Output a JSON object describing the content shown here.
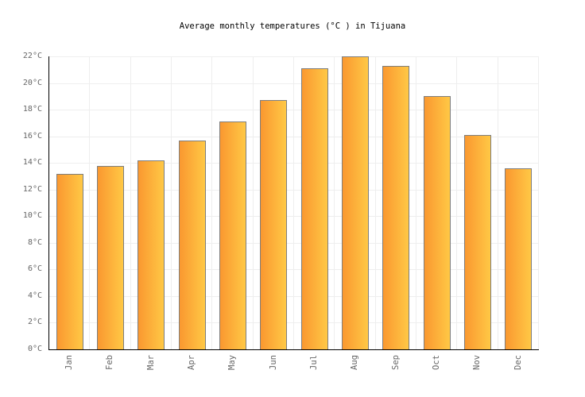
{
  "title": "Average monthly temperatures (°C ) in Tijuana",
  "chart_data": {
    "type": "bar",
    "title": "Average monthly temperatures (°C ) in Tijuana",
    "categories": [
      "Jan",
      "Feb",
      "Mar",
      "Apr",
      "May",
      "Jun",
      "Jul",
      "Aug",
      "Sep",
      "Oct",
      "Nov",
      "Dec"
    ],
    "values": [
      13.2,
      13.8,
      14.2,
      15.7,
      17.1,
      18.7,
      21.1,
      22.0,
      21.3,
      19.0,
      16.1,
      13.6
    ],
    "xlabel": "",
    "ylabel": "",
    "ylim": [
      0,
      22
    ],
    "ytick_step": 2,
    "ytick_labels": [
      "0°C",
      "2°C",
      "4°C",
      "6°C",
      "8°C",
      "10°C",
      "12°C",
      "14°C",
      "16°C",
      "18°C",
      "20°C",
      "22°C"
    ],
    "grid": true,
    "legend_position": "none"
  },
  "colors": {
    "background": "#FFFFFF",
    "title_text": "#000000",
    "tick_label": "#666666",
    "axis_line": "#000000",
    "grid_line": "#EEEEEE",
    "bar_border": "#7E7E7E",
    "bar_gradient_left": "#FA9830",
    "bar_gradient_right": "#FFC845"
  }
}
